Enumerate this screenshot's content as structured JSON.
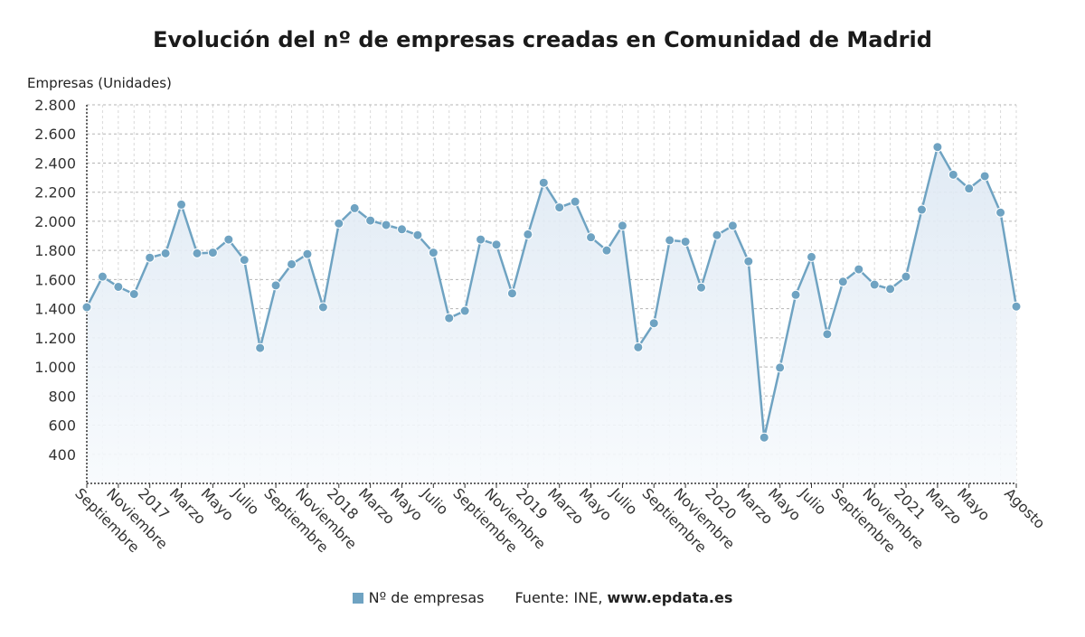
{
  "colors": {
    "series": "#6fa3c2",
    "point": "#6fa3c2",
    "grid": "#b5b5b5",
    "fill_top": "#dde8f3",
    "fill_bottom": "#f7fafd"
  },
  "legend": {
    "series_label": "Nº de empresas",
    "source_prefix": "Fuente: INE, ",
    "source_site": "www.epdata.es"
  },
  "chart_data": {
    "type": "line",
    "title": "Evolución del nº de empresas creadas en Comunidad de Madrid",
    "ylabel": "Empresas (Unidades)",
    "xlabel": "",
    "ylim": [
      200,
      2800
    ],
    "yticks": [
      400,
      600,
      800,
      1000,
      1200,
      1400,
      1600,
      1800,
      2000,
      2200,
      2400,
      2600,
      2800
    ],
    "ytick_labels": [
      "400",
      "600",
      "800",
      "1.000",
      "1.200",
      "1.400",
      "1.600",
      "1.800",
      "2.000",
      "2.200",
      "2.400",
      "2.600",
      "2.800"
    ],
    "grid": true,
    "legend_position": "bottom",
    "x": [
      "2016-09",
      "2016-10",
      "2016-11",
      "2016-12",
      "2017-01",
      "2017-02",
      "2017-03",
      "2017-04",
      "2017-05",
      "2017-06",
      "2017-07",
      "2017-08",
      "2017-09",
      "2017-10",
      "2017-11",
      "2017-12",
      "2018-01",
      "2018-02",
      "2018-03",
      "2018-04",
      "2018-05",
      "2018-06",
      "2018-07",
      "2018-08",
      "2018-09",
      "2018-10",
      "2018-11",
      "2018-12",
      "2019-01",
      "2019-02",
      "2019-03",
      "2019-04",
      "2019-05",
      "2019-06",
      "2019-07",
      "2019-08",
      "2019-09",
      "2019-10",
      "2019-11",
      "2019-12",
      "2020-01",
      "2020-02",
      "2020-03",
      "2020-04",
      "2020-05",
      "2020-06",
      "2020-07",
      "2020-08",
      "2020-09",
      "2020-10",
      "2020-11",
      "2020-12",
      "2021-01",
      "2021-02",
      "2021-03",
      "2021-04",
      "2021-05",
      "2021-06",
      "2021-07",
      "2021-08"
    ],
    "xtick_labels": [
      {
        "index": 0,
        "label": "Septiembre"
      },
      {
        "index": 2,
        "label": "Noviembre"
      },
      {
        "index": 4,
        "label": "2017"
      },
      {
        "index": 6,
        "label": "Marzo"
      },
      {
        "index": 8,
        "label": "Mayo"
      },
      {
        "index": 10,
        "label": "Julio"
      },
      {
        "index": 12,
        "label": "Septiembre"
      },
      {
        "index": 14,
        "label": "Noviembre"
      },
      {
        "index": 16,
        "label": "2018"
      },
      {
        "index": 18,
        "label": "Marzo"
      },
      {
        "index": 20,
        "label": "Mayo"
      },
      {
        "index": 22,
        "label": "Julio"
      },
      {
        "index": 24,
        "label": "Septiembre"
      },
      {
        "index": 26,
        "label": "Noviembre"
      },
      {
        "index": 28,
        "label": "2019"
      },
      {
        "index": 30,
        "label": "Marzo"
      },
      {
        "index": 32,
        "label": "Mayo"
      },
      {
        "index": 34,
        "label": "Julio"
      },
      {
        "index": 36,
        "label": "Septiembre"
      },
      {
        "index": 38,
        "label": "Noviembre"
      },
      {
        "index": 40,
        "label": "2020"
      },
      {
        "index": 42,
        "label": "Marzo"
      },
      {
        "index": 44,
        "label": "Mayo"
      },
      {
        "index": 46,
        "label": "Julio"
      },
      {
        "index": 48,
        "label": "Septiembre"
      },
      {
        "index": 50,
        "label": "Noviembre"
      },
      {
        "index": 52,
        "label": "2021"
      },
      {
        "index": 54,
        "label": "Marzo"
      },
      {
        "index": 56,
        "label": "Mayo"
      },
      {
        "index": 59,
        "label": "Agosto"
      }
    ],
    "series": [
      {
        "name": "Nº de empresas",
        "values": [
          1410,
          1620,
          1550,
          1500,
          1750,
          1780,
          2115,
          1780,
          1785,
          1875,
          1735,
          1130,
          1560,
          1705,
          1775,
          1410,
          1985,
          2090,
          2005,
          1975,
          1945,
          1905,
          1785,
          1335,
          1385,
          1875,
          1840,
          1505,
          1910,
          2265,
          2095,
          2135,
          1890,
          1800,
          1970,
          1135,
          1300,
          1870,
          1860,
          1545,
          1905,
          1970,
          1725,
          515,
          995,
          1495,
          1755,
          1225,
          1585,
          1670,
          1565,
          1535,
          1620,
          2080,
          2510,
          2320,
          2225,
          2310,
          2060,
          1415
        ]
      }
    ]
  }
}
